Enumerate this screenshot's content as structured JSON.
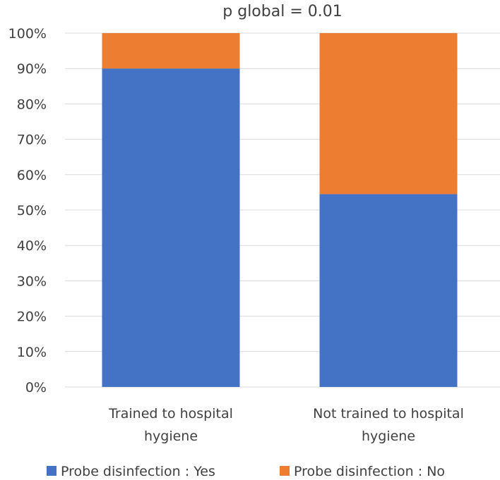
{
  "chart_data": {
    "type": "bar",
    "stacked": true,
    "title": "p global = 0.01",
    "categories": [
      [
        "Trained to hospital",
        "hygiene"
      ],
      [
        "Not trained to hospital",
        "hygiene"
      ]
    ],
    "series": [
      {
        "name": "Probe disinfection : Yes",
        "color": "#4472C4",
        "values": [
          90,
          54.5
        ]
      },
      {
        "name": "Probe disinfection : No",
        "color": "#ED7D31",
        "values": [
          10,
          45.5
        ]
      }
    ],
    "yticks": [
      "0%",
      "10%",
      "20%",
      "30%",
      "40%",
      "50%",
      "60%",
      "70%",
      "80%",
      "90%",
      "100%"
    ],
    "ylim": [
      0,
      100
    ],
    "grid": true,
    "legend_position": "bottom"
  }
}
